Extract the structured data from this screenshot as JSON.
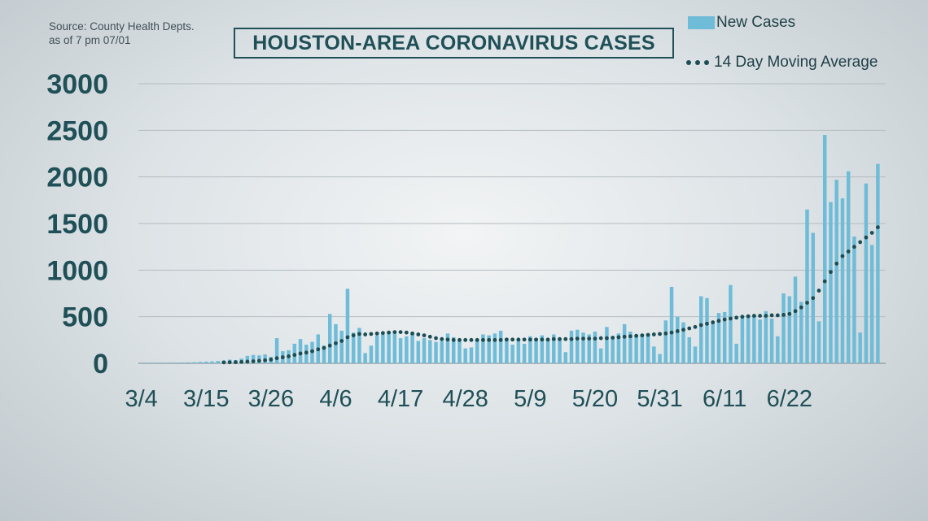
{
  "source": {
    "line1": "Source: County Health Depts.",
    "line2": "as of 7 pm 07/01"
  },
  "legend": {
    "bars_label": "New Cases",
    "avg_label": "14 Day Moving Average"
  },
  "colors": {
    "bar": "#6fbcd8",
    "avg": "#1b4d55",
    "axis_text": "#1f4f57",
    "grid": "#b4bcc1"
  },
  "chart_data": {
    "type": "bar",
    "title": "HOUSTON-AREA CORONAVIRUS CASES",
    "xlabel": "",
    "ylabel": "",
    "ylim": [
      0,
      3000
    ],
    "yticks": [
      0,
      500,
      1000,
      1500,
      2000,
      2500,
      3000
    ],
    "x_tick_labels": [
      "3/4",
      "3/15",
      "3/26",
      "4/6",
      "4/17",
      "4/28",
      "5/9",
      "5/20",
      "5/31",
      "6/11",
      "6/22"
    ],
    "x_tick_index": [
      0,
      11,
      22,
      33,
      44,
      55,
      66,
      77,
      88,
      99,
      110
    ],
    "x_start": "3/4",
    "x_end": "7/1",
    "grid": "horizontal",
    "legend_position": "top-right",
    "series": [
      {
        "name": "New Cases",
        "type": "bar",
        "values": [
          5,
          3,
          4,
          6,
          5,
          7,
          6,
          8,
          10,
          12,
          15,
          18,
          20,
          25,
          30,
          40,
          35,
          50,
          80,
          90,
          85,
          95,
          70,
          270,
          130,
          140,
          210,
          260,
          200,
          230,
          310,
          190,
          530,
          420,
          350,
          800,
          330,
          380,
          110,
          190,
          300,
          310,
          340,
          320,
          270,
          290,
          330,
          240,
          270,
          250,
          230,
          240,
          320,
          280,
          240,
          160,
          170,
          240,
          310,
          300,
          320,
          350,
          270,
          200,
          250,
          210,
          290,
          270,
          300,
          260,
          310,
          270,
          120,
          350,
          360,
          330,
          310,
          340,
          160,
          390,
          290,
          320,
          420,
          340,
          300,
          310,
          320,
          180,
          100,
          460,
          820,
          500,
          440,
          280,
          180,
          720,
          700,
          430,
          540,
          550,
          840,
          210,
          500,
          520,
          520,
          470,
          560,
          480,
          290,
          750,
          720,
          930,
          660,
          1650,
          1400,
          450,
          2450,
          1730,
          1970,
          1770,
          2060,
          1360,
          330,
          1930,
          1270,
          2140
        ]
      },
      {
        "name": "14 Day Moving Average",
        "type": "line",
        "style": "dotted",
        "values": [
          null,
          null,
          null,
          null,
          null,
          null,
          null,
          null,
          null,
          null,
          null,
          null,
          null,
          null,
          10,
          11,
          12,
          15,
          18,
          22,
          27,
          33,
          40,
          55,
          65,
          75,
          90,
          105,
          115,
          130,
          150,
          165,
          190,
          215,
          240,
          280,
          300,
          315,
          310,
          315,
          320,
          325,
          330,
          335,
          335,
          330,
          320,
          310,
          300,
          285,
          270,
          260,
          255,
          250,
          250,
          250,
          250,
          250,
          250,
          250,
          250,
          250,
          255,
          255,
          255,
          255,
          255,
          255,
          255,
          255,
          260,
          260,
          260,
          260,
          265,
          265,
          265,
          265,
          270,
          270,
          275,
          280,
          285,
          290,
          295,
          300,
          305,
          310,
          315,
          320,
          330,
          345,
          360,
          375,
          390,
          410,
          425,
          440,
          455,
          470,
          480,
          490,
          500,
          505,
          510,
          510,
          510,
          515,
          515,
          520,
          530,
          560,
          600,
          650,
          700,
          780,
          880,
          980,
          1070,
          1150,
          1200,
          1250,
          1300,
          1350,
          1400,
          1460
        ]
      }
    ]
  }
}
